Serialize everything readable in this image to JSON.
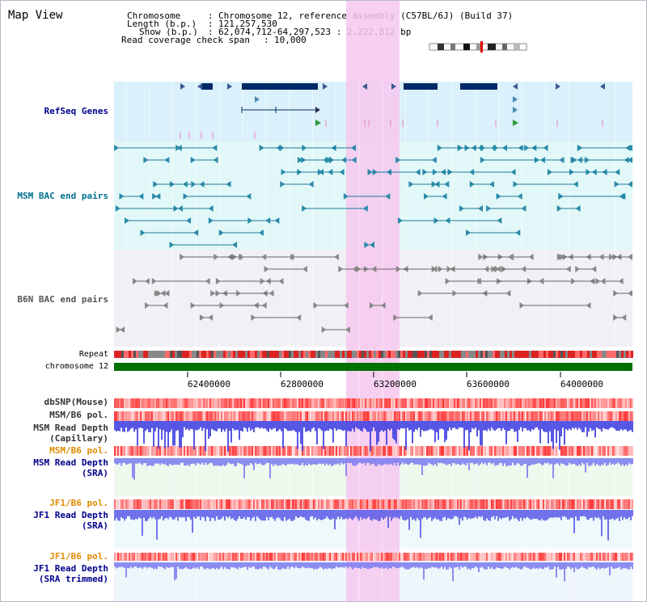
{
  "page": {
    "title": "Map View"
  },
  "header": {
    "chromosome_label": "Chromosome",
    "chromosome_value": "Chromosome 12, reference assembly (C57BL/6J) (Build 37)",
    "length_label": "Length (b.p.)",
    "length_value": "121,257,530",
    "show_label": "Show (b.p.)",
    "show_value": "62,074,712-64,297,523 : 2,222,812 bp",
    "coverage_label": "Read coverage check span",
    "coverage_value": "10,000"
  },
  "tracks": {
    "refseq": "RefSeq Genes",
    "msm_bac": "MSM BAC end pairs",
    "b6n_bac": "B6N BAC end pairs",
    "repeat": "Repeat",
    "chromosome": "chromosome 12",
    "dbsnp": "dbSNP(Mouse)",
    "msm_b6_pol_1": "MSM/B6 pol.",
    "msm_read_depth_cap": "MSM Read Depth",
    "msm_read_depth_cap_sub": "(Capillary)",
    "msm_b6_pol_2": "MSM/B6 pol.",
    "msm_read_depth_sra": "MSM Read Depth",
    "msm_read_depth_sra_sub": "(SRA)",
    "jf1_b6_pol_1": "JF1/B6 pol.",
    "jf1_read_depth_sra": "JF1 Read Depth",
    "jf1_read_depth_sra_sub": "(SRA)",
    "jf1_b6_pol_2": "JF1/B6 pol.",
    "jf1_read_depth_trim": "JF1 Read Depth",
    "jf1_read_depth_trim_sub": "(SRA trimmed)"
  },
  "axis": {
    "ticks": [
      "62400000",
      "62800000",
      "63200000",
      "63600000",
      "64000000"
    ]
  },
  "colors": {
    "refseq_bg": "#daf0fa",
    "msm_bg": "#e2f8f8",
    "b6n_bg": "#f0f0f5",
    "highlight": "#f6c8ee",
    "gene": "#002a66",
    "msm_feature": "#1a7a9a",
    "b6n_feature": "#666666",
    "chromosome_bar": "#007000",
    "depth_blue": "#3a3ae0",
    "pol_red": "#ee2a2a",
    "label_navy": "#00008b",
    "label_orange": "#e08a00",
    "label_teal": "#007090"
  }
}
